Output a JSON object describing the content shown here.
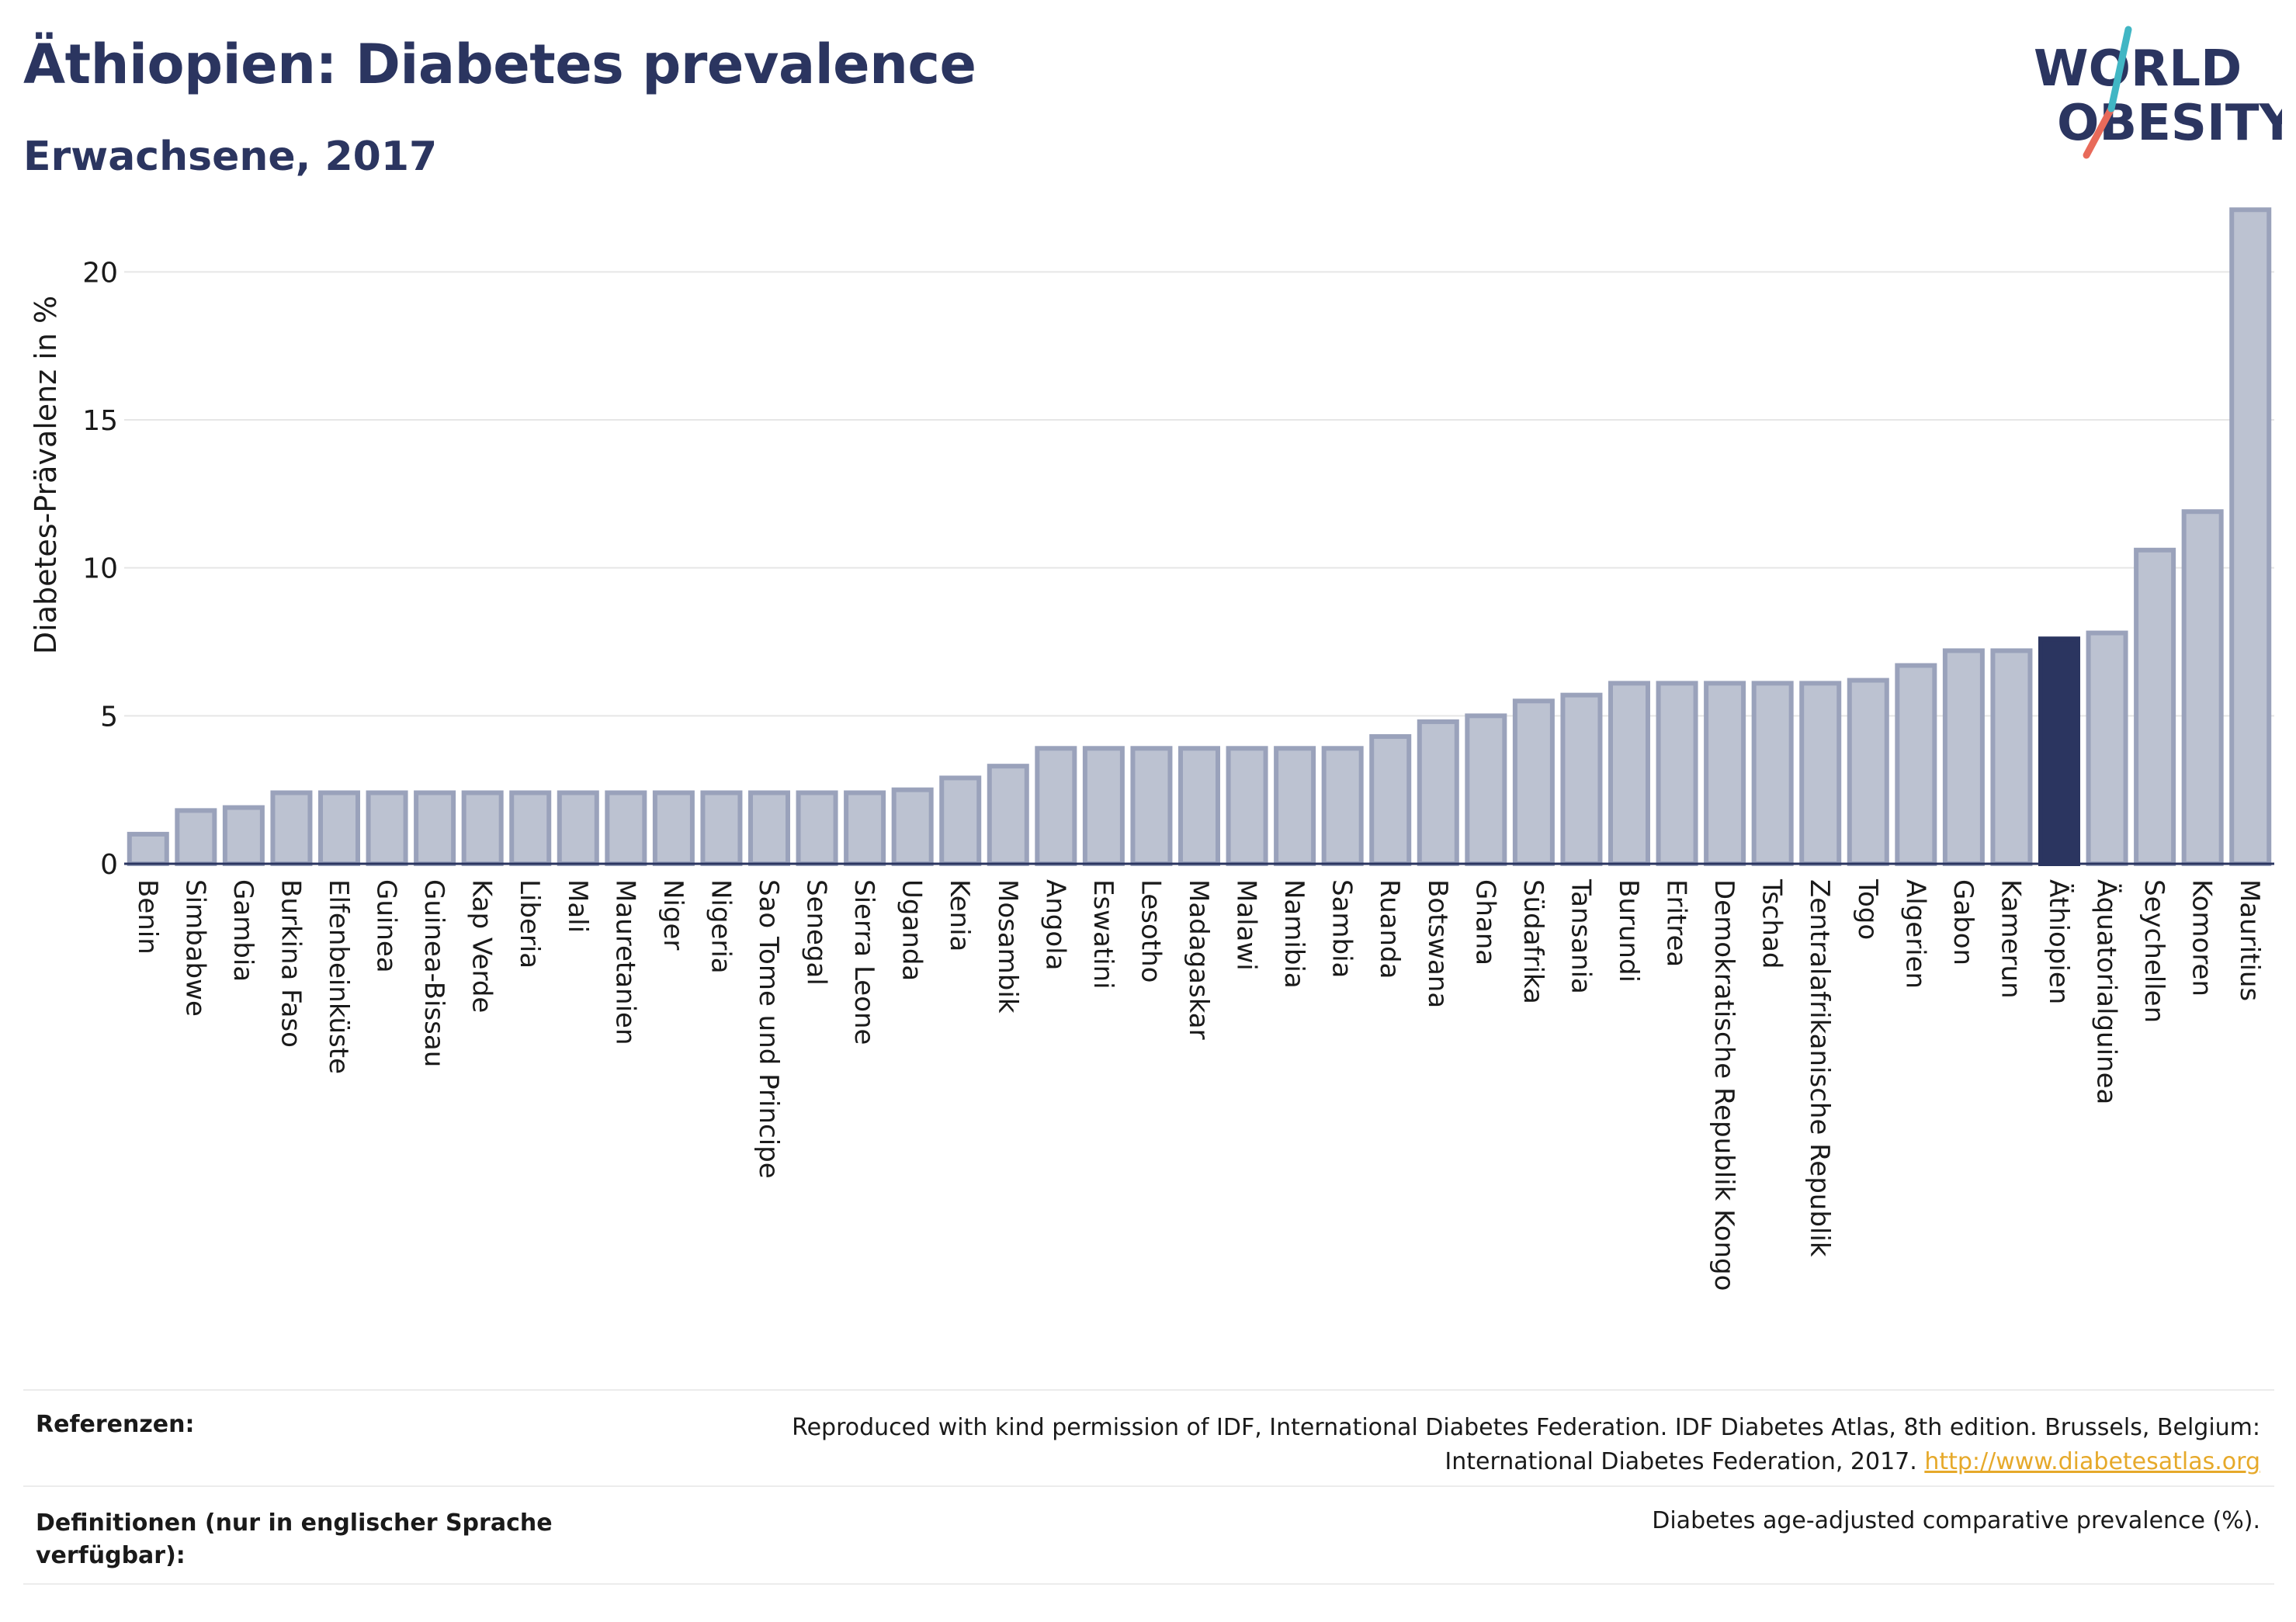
{
  "header": {
    "title": "Äthiopien: Diabetes prevalence",
    "subtitle": "Erwachsene, 2017"
  },
  "logo": {
    "line1": "WORLD",
    "line2": "OBESITY"
  },
  "colors": {
    "bar": "#bcc2d1",
    "bar_border": "#9aa2bb",
    "highlight": "#2b3560",
    "text": "#2b3560",
    "grid": "#e6e6e6",
    "link": "#e6a92a"
  },
  "chart_data": {
    "type": "bar",
    "ylabel": "Diabetes-Prävalenz in %",
    "ylim": [
      0,
      22.5
    ],
    "yticks": [
      0,
      5,
      10,
      15,
      20
    ],
    "grid": true,
    "highlight": "Äthiopien",
    "categories": [
      "Benin",
      "Simbabwe",
      "Gambia",
      "Burkina Faso",
      "Elfenbeinküste",
      "Guinea",
      "Guinea-Bissau",
      "Kap Verde",
      "Liberia",
      "Mali",
      "Mauretanien",
      "Niger",
      "Nigeria",
      "Sao Tome und Principe",
      "Senegal",
      "Sierra Leone",
      "Uganda",
      "Kenia",
      "Mosambik",
      "Angola",
      "Eswatini",
      "Lesotho",
      "Madagaskar",
      "Malawi",
      "Namibia",
      "Sambia",
      "Ruanda",
      "Botswana",
      "Ghana",
      "Südafrika",
      "Tansania",
      "Burundi",
      "Eritrea",
      "Demokratische Republik Kongo",
      "Tschad",
      "Zentralafrikanische Republik",
      "Togo",
      "Algerien",
      "Gabon",
      "Kamerun",
      "Äthiopien",
      "Äquatorialguinea",
      "Seychellen",
      "Komoren",
      "Mauritius"
    ],
    "values": [
      1.0,
      1.8,
      1.9,
      2.4,
      2.4,
      2.4,
      2.4,
      2.4,
      2.4,
      2.4,
      2.4,
      2.4,
      2.4,
      2.4,
      2.4,
      2.4,
      2.5,
      2.9,
      3.3,
      3.9,
      3.9,
      3.9,
      3.9,
      3.9,
      3.9,
      3.9,
      4.3,
      4.8,
      5.0,
      5.5,
      5.7,
      6.1,
      6.1,
      6.1,
      6.1,
      6.1,
      6.2,
      6.7,
      7.2,
      7.2,
      7.6,
      7.8,
      10.6,
      11.9,
      22.1
    ]
  },
  "footer": {
    "references_label": "Referenzen:",
    "references_line1": "Reproduced with kind permission of IDF, International Diabetes Federation. IDF Diabetes Atlas, 8th edition. Brussels, Belgium:",
    "references_line2": "International Diabetes Federation, 2017.",
    "references_link": "http://www.diabetesatlas.org",
    "definitions_label_line1": "Definitionen (nur in englischer Sprache",
    "definitions_label_line2": "verfügbar):",
    "definitions_text": "Diabetes age-adjusted comparative prevalence (%)."
  }
}
